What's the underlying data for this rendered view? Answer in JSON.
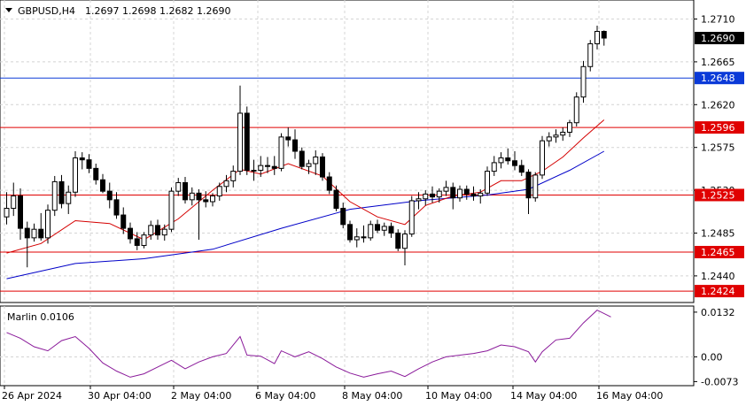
{
  "header": {
    "symbol": "GBPUSD,H4",
    "ohlc": "1.2697 1.2698 1.2682 1.2690"
  },
  "colors": {
    "grid": "#d4d4d4",
    "axis": "#000000",
    "ma_fast": "#d40000",
    "ma_slow": "#0000c8",
    "oscillator": "#8a1a9a",
    "level_red": "#e00000",
    "level_blue": "#0b3ad8",
    "candle_bull": "#ffffff",
    "candle_bear": "#000000"
  },
  "x_axis": {
    "labels": [
      "26 Apr 2024",
      "30 Apr 04:00",
      "2 May 04:00",
      "6 May 04:00",
      "8 May 04:00",
      "10 May 04:00",
      "14 May 04:00",
      "16 May 04:00"
    ]
  },
  "price_axis": {
    "ticks": [
      "1.2710",
      "1.2665",
      "1.2620",
      "1.2575",
      "1.2530",
      "1.2485",
      "1.2440"
    ]
  },
  "price_levels": [
    {
      "price": 1.269,
      "label": "1.2690",
      "color": "#000000",
      "kind": "current"
    },
    {
      "price": 1.2648,
      "label": "1.2648",
      "color": "#0b3ad8",
      "kind": "line"
    },
    {
      "price": 1.2596,
      "label": "1.2596",
      "color": "#e00000",
      "kind": "line"
    },
    {
      "price": 1.2525,
      "label": "1.2525",
      "color": "#e00000",
      "kind": "line"
    },
    {
      "price": 1.2465,
      "label": "1.2465",
      "color": "#e00000",
      "kind": "line"
    },
    {
      "price": 1.2424,
      "label": "1.2424",
      "color": "#e00000",
      "kind": "line"
    }
  ],
  "indicator": {
    "name": "Marlin 0.0106",
    "ticks": [
      "0.0132",
      "0.00",
      "-0.0073"
    ]
  },
  "chart_data": {
    "type": "candlestick",
    "title": "GBPUSD,H4",
    "ylim": [
      1.2412,
      1.273
    ],
    "osc_ylim": [
      -0.0085,
      0.015
    ],
    "candles": [
      [
        1.2502,
        1.2528,
        1.2494,
        1.2511
      ],
      [
        1.2511,
        1.2538,
        1.2503,
        1.2524
      ],
      [
        1.2524,
        1.2532,
        1.2478,
        1.249
      ],
      [
        1.249,
        1.2497,
        1.2449,
        1.248
      ],
      [
        1.248,
        1.2495,
        1.2476,
        1.2489
      ],
      [
        1.2489,
        1.2506,
        1.2477,
        1.248
      ],
      [
        1.248,
        1.2515,
        1.2474,
        1.2509
      ],
      [
        1.2509,
        1.2545,
        1.2503,
        1.2539
      ],
      [
        1.2539,
        1.2546,
        1.2511,
        1.2516
      ],
      [
        1.2516,
        1.2535,
        1.2505,
        1.2528
      ],
      [
        1.2528,
        1.2571,
        1.2523,
        1.2564
      ],
      [
        1.2564,
        1.257,
        1.2552,
        1.2562
      ],
      [
        1.2562,
        1.2568,
        1.2548,
        1.2553
      ],
      [
        1.2553,
        1.2558,
        1.2536,
        1.2541
      ],
      [
        1.2541,
        1.2547,
        1.2527,
        1.2529
      ],
      [
        1.2529,
        1.2538,
        1.2511,
        1.252
      ],
      [
        1.252,
        1.2528,
        1.25,
        1.2504
      ],
      [
        1.2504,
        1.2512,
        1.2484,
        1.249
      ],
      [
        1.249,
        1.2496,
        1.2474,
        1.2479
      ],
      [
        1.2479,
        1.2486,
        1.2467,
        1.2472
      ],
      [
        1.2472,
        1.2486,
        1.2469,
        1.2483
      ],
      [
        1.2483,
        1.2498,
        1.2478,
        1.2493
      ],
      [
        1.2493,
        1.2499,
        1.2478,
        1.2483
      ],
      [
        1.2483,
        1.2494,
        1.2477,
        1.2489
      ],
      [
        1.2489,
        1.2533,
        1.2486,
        1.2529
      ],
      [
        1.2529,
        1.2543,
        1.2524,
        1.2538
      ],
      [
        1.2538,
        1.2544,
        1.2516,
        1.252
      ],
      [
        1.252,
        1.2533,
        1.2514,
        1.2527
      ],
      [
        1.2527,
        1.2531,
        1.2478,
        1.252
      ],
      [
        1.252,
        1.2529,
        1.2512,
        1.2518
      ],
      [
        1.2518,
        1.2527,
        1.2513,
        1.2524
      ],
      [
        1.2524,
        1.2538,
        1.2519,
        1.2534
      ],
      [
        1.2534,
        1.2546,
        1.2528,
        1.254
      ],
      [
        1.254,
        1.2556,
        1.2533,
        1.255
      ],
      [
        1.255,
        1.264,
        1.2546,
        1.2611
      ],
      [
        1.2611,
        1.2618,
        1.2546,
        1.2551
      ],
      [
        1.2551,
        1.2562,
        1.254,
        1.2551
      ],
      [
        1.2551,
        1.2566,
        1.2544,
        1.2556
      ],
      [
        1.2556,
        1.2565,
        1.2548,
        1.2555
      ],
      [
        1.2555,
        1.2566,
        1.2546,
        1.2553
      ],
      [
        1.2553,
        1.259,
        1.255,
        1.2586
      ],
      [
        1.2586,
        1.2596,
        1.2576,
        1.2583
      ],
      [
        1.2583,
        1.2594,
        1.2563,
        1.2571
      ],
      [
        1.2571,
        1.2575,
        1.2552,
        1.2555
      ],
      [
        1.2555,
        1.2562,
        1.2547,
        1.2558
      ],
      [
        1.2558,
        1.2572,
        1.2546,
        1.2565
      ],
      [
        1.2565,
        1.2569,
        1.254,
        1.2544
      ],
      [
        1.2544,
        1.2549,
        1.2526,
        1.253
      ],
      [
        1.253,
        1.2535,
        1.2508,
        1.2511
      ],
      [
        1.2511,
        1.2517,
        1.249,
        1.2494
      ],
      [
        1.2494,
        1.2498,
        1.2475,
        1.2478
      ],
      [
        1.2478,
        1.249,
        1.247,
        1.2481
      ],
      [
        1.2481,
        1.2493,
        1.2475,
        1.248
      ],
      [
        1.248,
        1.2498,
        1.2477,
        1.2494
      ],
      [
        1.2494,
        1.2499,
        1.2485,
        1.2488
      ],
      [
        1.2488,
        1.2496,
        1.2482,
        1.2492
      ],
      [
        1.2492,
        1.2496,
        1.248,
        1.2485
      ],
      [
        1.2485,
        1.2489,
        1.2466,
        1.2469
      ],
      [
        1.2469,
        1.2488,
        1.2451,
        1.2484
      ],
      [
        1.2484,
        1.2524,
        1.2481,
        1.2519
      ],
      [
        1.2519,
        1.2528,
        1.251,
        1.2521
      ],
      [
        1.2521,
        1.253,
        1.2514,
        1.2526
      ],
      [
        1.2526,
        1.2534,
        1.2517,
        1.2523
      ],
      [
        1.2523,
        1.2532,
        1.2517,
        1.2529
      ],
      [
        1.2529,
        1.254,
        1.2524,
        1.2533
      ],
      [
        1.2533,
        1.2538,
        1.251,
        1.2522
      ],
      [
        1.2522,
        1.2535,
        1.2518,
        1.2531
      ],
      [
        1.2531,
        1.2535,
        1.252,
        1.2526
      ],
      [
        1.2526,
        1.2534,
        1.2519,
        1.2524
      ],
      [
        1.2524,
        1.2531,
        1.2516,
        1.2527
      ],
      [
        1.2527,
        1.2555,
        1.2524,
        1.255
      ],
      [
        1.255,
        1.2566,
        1.2545,
        1.2559
      ],
      [
        1.2559,
        1.257,
        1.2553,
        1.2564
      ],
      [
        1.2564,
        1.2574,
        1.2557,
        1.2561
      ],
      [
        1.2561,
        1.2571,
        1.2551,
        1.2556
      ],
      [
        1.2556,
        1.2562,
        1.2545,
        1.2549
      ],
      [
        1.2549,
        1.2552,
        1.2505,
        1.2522
      ],
      [
        1.2522,
        1.2549,
        1.2518,
        1.2546
      ],
      [
        1.2546,
        1.2587,
        1.2542,
        1.2582
      ],
      [
        1.2582,
        1.2591,
        1.2576,
        1.2586
      ],
      [
        1.2586,
        1.2594,
        1.258,
        1.2588
      ],
      [
        1.2588,
        1.2596,
        1.2582,
        1.2591
      ],
      [
        1.2591,
        1.2604,
        1.2586,
        1.2601
      ],
      [
        1.2601,
        1.2633,
        1.2597,
        1.2628
      ],
      [
        1.2628,
        1.2666,
        1.2622,
        1.266
      ],
      [
        1.266,
        1.2688,
        1.2655,
        1.2684
      ],
      [
        1.2684,
        1.2703,
        1.2678,
        1.2697
      ],
      [
        1.2697,
        1.2698,
        1.2682,
        1.269
      ]
    ],
    "ma_fast": [
      [
        0,
        1.2464
      ],
      [
        5,
        1.2474
      ],
      [
        10,
        1.2498
      ],
      [
        15,
        1.2495
      ],
      [
        20,
        1.2478
      ],
      [
        25,
        1.25
      ],
      [
        30,
        1.253
      ],
      [
        34,
        1.2552
      ],
      [
        37,
        1.2547
      ],
      [
        41,
        1.2558
      ],
      [
        46,
        1.2545
      ],
      [
        50,
        1.2518
      ],
      [
        54,
        1.2502
      ],
      [
        58,
        1.2494
      ],
      [
        61,
        1.2514
      ],
      [
        65,
        1.2524
      ],
      [
        69,
        1.2528
      ],
      [
        72,
        1.254
      ],
      [
        75,
        1.254
      ],
      [
        78,
        1.255
      ],
      [
        81,
        1.2565
      ],
      [
        84,
        1.2585
      ],
      [
        87,
        1.2604
      ]
    ],
    "ma_slow": [
      [
        0,
        1.2437
      ],
      [
        10,
        1.2453
      ],
      [
        20,
        1.2458
      ],
      [
        30,
        1.2468
      ],
      [
        40,
        1.249
      ],
      [
        50,
        1.251
      ],
      [
        60,
        1.2519
      ],
      [
        70,
        1.2525
      ],
      [
        76,
        1.2531
      ],
      [
        82,
        1.2551
      ],
      [
        87,
        1.2571
      ]
    ],
    "oscillator": [
      [
        0,
        0.0072
      ],
      [
        2,
        0.0055
      ],
      [
        4,
        0.003
      ],
      [
        6,
        0.0018
      ],
      [
        8,
        0.0048
      ],
      [
        10,
        0.006
      ],
      [
        12,
        0.0025
      ],
      [
        14,
        -0.0018
      ],
      [
        16,
        -0.0042
      ],
      [
        18,
        -0.006
      ],
      [
        20,
        -0.005
      ],
      [
        22,
        -0.003
      ],
      [
        24,
        -0.001
      ],
      [
        26,
        -0.0035
      ],
      [
        28,
        -0.0015
      ],
      [
        30,
        0.0
      ],
      [
        32,
        0.001
      ],
      [
        34,
        0.006
      ],
      [
        35,
        0.0005
      ],
      [
        37,
        0.0002
      ],
      [
        39,
        -0.002
      ],
      [
        40,
        0.0018
      ],
      [
        42,
        0.0
      ],
      [
        44,
        0.0015
      ],
      [
        46,
        -0.0005
      ],
      [
        48,
        -0.003
      ],
      [
        50,
        -0.0048
      ],
      [
        52,
        -0.006
      ],
      [
        54,
        -0.005
      ],
      [
        56,
        -0.0042
      ],
      [
        58,
        -0.0058
      ],
      [
        60,
        -0.0035
      ],
      [
        62,
        -0.0015
      ],
      [
        64,
        0.0
      ],
      [
        66,
        0.0005
      ],
      [
        68,
        0.001
      ],
      [
        70,
        0.0018
      ],
      [
        72,
        0.0035
      ],
      [
        74,
        0.003
      ],
      [
        76,
        0.0015
      ],
      [
        77,
        -0.0015
      ],
      [
        78,
        0.0015
      ],
      [
        80,
        0.005
      ],
      [
        82,
        0.0055
      ],
      [
        84,
        0.01
      ],
      [
        86,
        0.0138
      ],
      [
        88,
        0.0118
      ]
    ]
  }
}
